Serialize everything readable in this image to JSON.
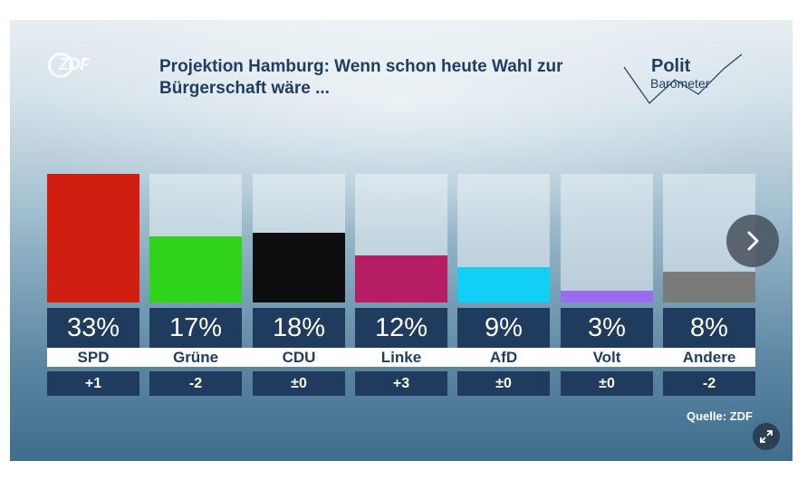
{
  "header": {
    "title": "Projektion Hamburg: Wenn schon heute Wahl zur Bürgerschaft wäre ...",
    "broadcaster_logo": "ZDF",
    "program_logo_top": "Polit",
    "program_logo_bottom": "Barometer"
  },
  "chart_data": {
    "type": "bar",
    "title": "Projektion Hamburg: Wenn schon heute Wahl zur Bürgerschaft wäre ...",
    "unit": "%",
    "categories": [
      "SPD",
      "Grüne",
      "CDU",
      "Linke",
      "AfD",
      "Volt",
      "Andere"
    ],
    "values": [
      33,
      17,
      18,
      12,
      9,
      3,
      8
    ],
    "value_labels": [
      "33%",
      "17%",
      "18%",
      "12%",
      "9%",
      "3%",
      "8%"
    ],
    "changes": [
      "+1",
      "-2",
      "±0",
      "+3",
      "±0",
      "±0",
      "-2"
    ],
    "colors": [
      "#d01f10",
      "#2ed31a",
      "#0d0d0d",
      "#b51e64",
      "#12d0f5",
      "#9a6cf0",
      "#7a7a7a"
    ],
    "ylim": [
      0,
      33
    ],
    "grid": false,
    "legend": "none"
  },
  "footer": {
    "source": "Quelle: ZDF"
  },
  "controls": {
    "next_icon": "chevron-right-icon",
    "expand_icon": "expand-icon"
  }
}
